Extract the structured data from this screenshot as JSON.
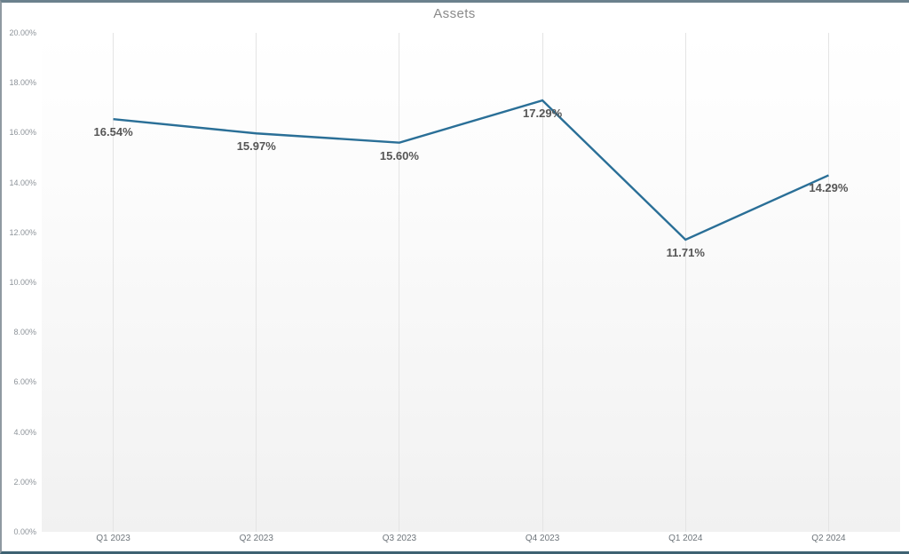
{
  "chart_data": {
    "type": "line",
    "title": "Assets",
    "categories": [
      "Q1 2023",
      "Q2 2023",
      "Q3 2023",
      "Q4 2023",
      "Q1 2024",
      "Q2 2024"
    ],
    "series": [
      {
        "name": "Assets",
        "values": [
          16.54,
          15.97,
          15.6,
          17.29,
          11.71,
          14.29
        ]
      }
    ],
    "point_labels": [
      "16.54%",
      "15.97%",
      "15.60%",
      "17.29%",
      "11.71%",
      "14.29%"
    ],
    "y_tick_labels": [
      "20.00%",
      "18.00%",
      "16.00%",
      "14.00%",
      "12.00%",
      "10.00%",
      "8.00%",
      "6.00%",
      "4.00%",
      "2.00%",
      "0.00%"
    ],
    "ylim": [
      0,
      20
    ],
    "xlabel": "",
    "ylabel": "",
    "grid": "vertical-only",
    "legend": "none",
    "line_color": "#2a6f97",
    "title_color": "#8a8a8a",
    "label_color": "#565656",
    "frame_border_color": "#3e6272"
  }
}
